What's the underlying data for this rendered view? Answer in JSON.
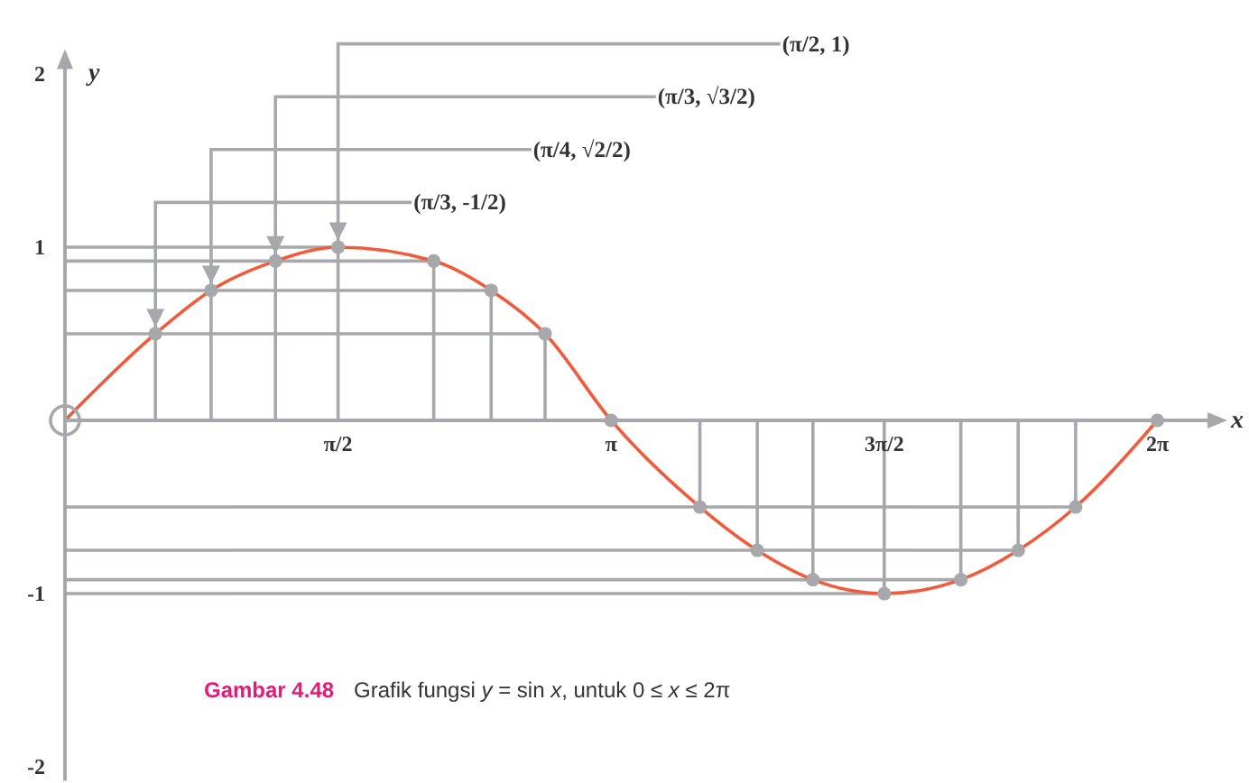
{
  "chart_data": {
    "type": "line",
    "xlabel": "x",
    "ylabel": "y",
    "xlim": [
      0,
      6.62
    ],
    "ylim": [
      -2.08,
      2.08
    ],
    "xticks": [
      {
        "value": 1.57,
        "label": "π/2"
      },
      {
        "value": 3.14,
        "label": "π"
      },
      {
        "value": 4.71,
        "label": "3π/2"
      },
      {
        "value": 6.28,
        "label": "2π"
      }
    ],
    "yticks": [
      -2,
      -1,
      1,
      2
    ],
    "series": [
      {
        "color": "#a6a8ab",
        "x": [
          0,
          2.76
        ],
        "values": [
          0.5,
          0.5
        ]
      },
      {
        "color": "#a6a8ab",
        "x": [
          0,
          2.45
        ],
        "values": [
          0.75,
          0.75
        ]
      },
      {
        "color": "#a6a8ab",
        "x": [
          0,
          2.12
        ],
        "values": [
          0.92,
          0.92
        ]
      },
      {
        "color": "#a6a8ab",
        "x": [
          0,
          1.57
        ],
        "values": [
          1,
          1
        ]
      },
      {
        "color": "#a6a8ab",
        "x": [
          0,
          5.81
        ],
        "values": [
          -0.5,
          -0.5
        ]
      },
      {
        "color": "#a6a8ab",
        "x": [
          0,
          5.48
        ],
        "values": [
          -0.75,
          -0.75
        ]
      },
      {
        "color": "#a6a8ab",
        "x": [
          0,
          5.15
        ],
        "values": [
          -0.92,
          -0.92
        ]
      },
      {
        "color": "#a6a8ab",
        "x": [
          0,
          4.71
        ],
        "values": [
          -1,
          -1
        ]
      },
      {
        "color": "#f15a3a",
        "x": [
          0,
          0.52,
          0.84,
          1.21,
          1.57,
          2.12,
          2.45,
          2.76,
          3.14,
          3.65,
          3.98,
          4.3,
          4.71,
          5.15,
          5.48,
          5.81,
          6.28
        ],
        "values": [
          0,
          0.5,
          0.75,
          0.92,
          1,
          0.92,
          0.75,
          0.5,
          0,
          -0.5,
          -0.75,
          -0.92,
          -1,
          -0.92,
          -0.75,
          -0.5,
          0
        ]
      },
      {
        "type": "lollipop",
        "color": "#a6a8ab",
        "marker": "circle",
        "x": [
          0.52,
          0.84,
          1.21,
          1.57,
          2.12,
          2.45,
          2.76,
          3.14,
          3.65,
          3.98,
          4.3,
          4.71,
          5.15,
          5.48,
          5.81,
          6.28
        ],
        "values": [
          0.5,
          0.75,
          0.92,
          1,
          0.92,
          0.75,
          0.5,
          0,
          -0.5,
          -0.75,
          -0.92,
          -1,
          -0.92,
          -0.75,
          -0.5,
          0
        ]
      }
    ],
    "annotations": [
      {
        "text": "(π/3, -1/2)",
        "x": 0.52,
        "y": 0.5
      },
      {
        "text": "(π/4, √2/2)",
        "x": 0.84,
        "y": 0.75
      },
      {
        "text": "(π/3, √3/2)",
        "x": 1.21,
        "y": 0.92
      },
      {
        "text": "(π/2, 1)",
        "x": 1.57,
        "y": 1
      },
      "Gambar 4.48",
      "Grafik fungsi y = sin x, untuk 0 ≤ x ≤ 2π"
    ]
  }
}
